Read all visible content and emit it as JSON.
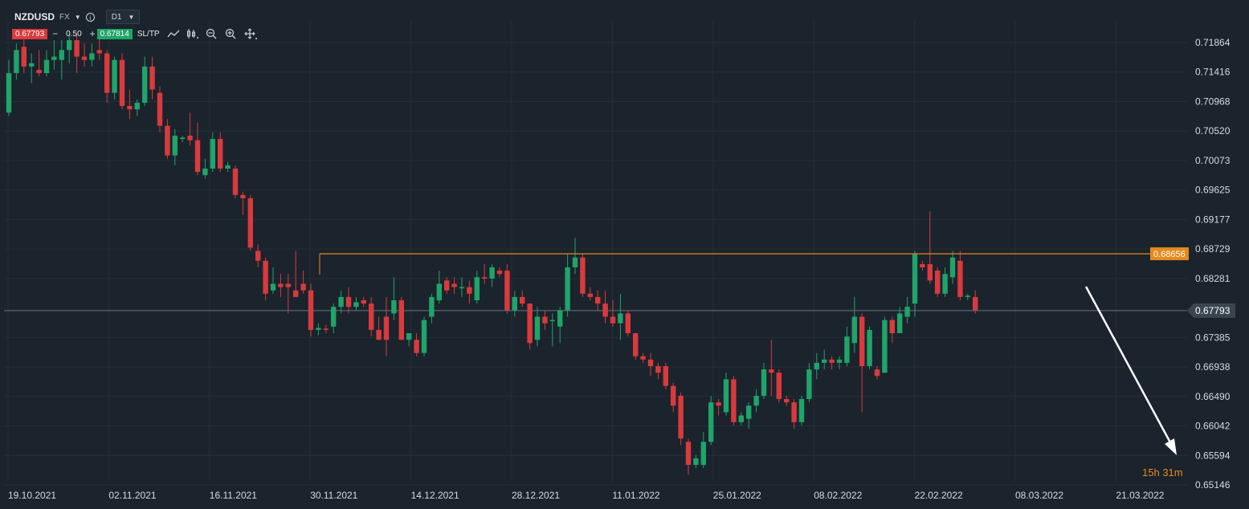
{
  "header": {
    "symbol": "NZDUSD",
    "market": "FX",
    "timeframe": "D1",
    "bid": "0.67793",
    "ask": "0.67814",
    "lot": "0.50",
    "sltp_label": "SL/TP",
    "minus": "−",
    "plus": "+"
  },
  "countdown": {
    "hours": "15",
    "h_unit": "h",
    "minutes": "31",
    "m_unit": "m"
  },
  "colors": {
    "background": "#1b232c",
    "bull": "#1fa46a",
    "bear": "#d93a3e",
    "resistance": "#e58a1f",
    "price_line": "#6b7681",
    "grid": "#252f39",
    "arrow": "#ffffff"
  },
  "chart_data": {
    "type": "candlestick",
    "y_ticks": [
      "0.71864",
      "0.71416",
      "0.70968",
      "0.70520",
      "0.70073",
      "0.69625",
      "0.69177",
      "0.68729",
      "0.68281",
      "0.67385",
      "0.66938",
      "0.66490",
      "0.66042",
      "0.65594",
      "0.65146"
    ],
    "ylim": [
      0.651,
      0.721
    ],
    "x_ticks": [
      "19.10.2021",
      "02.11.2021",
      "16.11.2021",
      "30.11.2021",
      "14.12.2021",
      "28.12.2021",
      "11.01.2022",
      "25.01.2022",
      "08.02.2022",
      "22.02.2022",
      "08.03.2022",
      "21.03.2022"
    ],
    "current_price": "0.67793",
    "resistance_level": "0.68656",
    "candles": [
      {
        "o": 0.708,
        "h": 0.716,
        "l": 0.7075,
        "c": 0.714
      },
      {
        "o": 0.714,
        "h": 0.7185,
        "l": 0.713,
        "c": 0.7175
      },
      {
        "o": 0.718,
        "h": 0.72,
        "l": 0.714,
        "c": 0.715
      },
      {
        "o": 0.715,
        "h": 0.717,
        "l": 0.7125,
        "c": 0.7155
      },
      {
        "o": 0.7145,
        "h": 0.7175,
        "l": 0.7135,
        "c": 0.714
      },
      {
        "o": 0.714,
        "h": 0.7175,
        "l": 0.7135,
        "c": 0.716
      },
      {
        "o": 0.716,
        "h": 0.719,
        "l": 0.7145,
        "c": 0.7165
      },
      {
        "o": 0.716,
        "h": 0.719,
        "l": 0.713,
        "c": 0.7175
      },
      {
        "o": 0.7175,
        "h": 0.72,
        "l": 0.7155,
        "c": 0.719
      },
      {
        "o": 0.719,
        "h": 0.72,
        "l": 0.714,
        "c": 0.7165
      },
      {
        "o": 0.7165,
        "h": 0.7185,
        "l": 0.715,
        "c": 0.716
      },
      {
        "o": 0.716,
        "h": 0.7185,
        "l": 0.715,
        "c": 0.717
      },
      {
        "o": 0.7175,
        "h": 0.7195,
        "l": 0.716,
        "c": 0.717
      },
      {
        "o": 0.717,
        "h": 0.7175,
        "l": 0.7095,
        "c": 0.711
      },
      {
        "o": 0.711,
        "h": 0.7165,
        "l": 0.71,
        "c": 0.716
      },
      {
        "o": 0.716,
        "h": 0.717,
        "l": 0.7085,
        "c": 0.709
      },
      {
        "o": 0.709,
        "h": 0.7115,
        "l": 0.707,
        "c": 0.7085
      },
      {
        "o": 0.7085,
        "h": 0.71,
        "l": 0.7075,
        "c": 0.7095
      },
      {
        "o": 0.7095,
        "h": 0.7165,
        "l": 0.709,
        "c": 0.715
      },
      {
        "o": 0.715,
        "h": 0.7165,
        "l": 0.71,
        "c": 0.7115
      },
      {
        "o": 0.711,
        "h": 0.712,
        "l": 0.705,
        "c": 0.706
      },
      {
        "o": 0.706,
        "h": 0.707,
        "l": 0.701,
        "c": 0.7015
      },
      {
        "o": 0.7015,
        "h": 0.7055,
        "l": 0.7,
        "c": 0.7045
      },
      {
        "o": 0.704,
        "h": 0.7045,
        "l": 0.7035,
        "c": 0.7042
      },
      {
        "o": 0.7045,
        "h": 0.708,
        "l": 0.703,
        "c": 0.7038
      },
      {
        "o": 0.7038,
        "h": 0.7065,
        "l": 0.6985,
        "c": 0.699
      },
      {
        "o": 0.6985,
        "h": 0.701,
        "l": 0.698,
        "c": 0.6995
      },
      {
        "o": 0.6995,
        "h": 0.705,
        "l": 0.699,
        "c": 0.704
      },
      {
        "o": 0.704,
        "h": 0.705,
        "l": 0.699,
        "c": 0.6995
      },
      {
        "o": 0.6995,
        "h": 0.7005,
        "l": 0.699,
        "c": 0.7
      },
      {
        "o": 0.6995,
        "h": 0.7,
        "l": 0.695,
        "c": 0.6955
      },
      {
        "o": 0.6955,
        "h": 0.696,
        "l": 0.6925,
        "c": 0.695
      },
      {
        "o": 0.695,
        "h": 0.6955,
        "l": 0.687,
        "c": 0.6875
      },
      {
        "o": 0.687,
        "h": 0.688,
        "l": 0.6845,
        "c": 0.6855
      },
      {
        "o": 0.6855,
        "h": 0.686,
        "l": 0.6795,
        "c": 0.6805
      },
      {
        "o": 0.681,
        "h": 0.6845,
        "l": 0.6805,
        "c": 0.682
      },
      {
        "o": 0.682,
        "h": 0.6835,
        "l": 0.68,
        "c": 0.6815
      },
      {
        "o": 0.682,
        "h": 0.6835,
        "l": 0.6775,
        "c": 0.6815
      },
      {
        "o": 0.681,
        "h": 0.687,
        "l": 0.68,
        "c": 0.68
      },
      {
        "o": 0.682,
        "h": 0.684,
        "l": 0.6805,
        "c": 0.681
      },
      {
        "o": 0.681,
        "h": 0.682,
        "l": 0.674,
        "c": 0.675
      },
      {
        "o": 0.675,
        "h": 0.676,
        "l": 0.6742,
        "c": 0.6753
      },
      {
        "o": 0.6752,
        "h": 0.6758,
        "l": 0.6745,
        "c": 0.675
      },
      {
        "o": 0.6755,
        "h": 0.679,
        "l": 0.6745,
        "c": 0.6785
      },
      {
        "o": 0.6785,
        "h": 0.681,
        "l": 0.6775,
        "c": 0.68
      },
      {
        "o": 0.68,
        "h": 0.6815,
        "l": 0.6775,
        "c": 0.6785
      },
      {
        "o": 0.6785,
        "h": 0.68,
        "l": 0.678,
        "c": 0.6792
      },
      {
        "o": 0.6795,
        "h": 0.68,
        "l": 0.6785,
        "c": 0.679
      },
      {
        "o": 0.679,
        "h": 0.68,
        "l": 0.674,
        "c": 0.675
      },
      {
        "o": 0.675,
        "h": 0.677,
        "l": 0.6735,
        "c": 0.6735
      },
      {
        "o": 0.677,
        "h": 0.68,
        "l": 0.671,
        "c": 0.6735
      },
      {
        "o": 0.6775,
        "h": 0.683,
        "l": 0.6765,
        "c": 0.6795
      },
      {
        "o": 0.6795,
        "h": 0.68,
        "l": 0.6735,
        "c": 0.6735
      },
      {
        "o": 0.6735,
        "h": 0.6745,
        "l": 0.6725,
        "c": 0.6745
      },
      {
        "o": 0.6735,
        "h": 0.6745,
        "l": 0.671,
        "c": 0.6715
      },
      {
        "o": 0.6715,
        "h": 0.677,
        "l": 0.671,
        "c": 0.6765
      },
      {
        "o": 0.677,
        "h": 0.6805,
        "l": 0.676,
        "c": 0.68
      },
      {
        "o": 0.6795,
        "h": 0.684,
        "l": 0.679,
        "c": 0.682
      },
      {
        "o": 0.6825,
        "h": 0.683,
        "l": 0.6805,
        "c": 0.681
      },
      {
        "o": 0.682,
        "h": 0.683,
        "l": 0.6805,
        "c": 0.6815
      },
      {
        "o": 0.6815,
        "h": 0.683,
        "l": 0.68,
        "c": 0.6815
      },
      {
        "o": 0.6815,
        "h": 0.6825,
        "l": 0.679,
        "c": 0.6805
      },
      {
        "o": 0.6795,
        "h": 0.684,
        "l": 0.679,
        "c": 0.683
      },
      {
        "o": 0.683,
        "h": 0.685,
        "l": 0.682,
        "c": 0.6828
      },
      {
        "o": 0.6828,
        "h": 0.685,
        "l": 0.6815,
        "c": 0.6845
      },
      {
        "o": 0.684,
        "h": 0.6845,
        "l": 0.683,
        "c": 0.6835
      },
      {
        "o": 0.684,
        "h": 0.685,
        "l": 0.6775,
        "c": 0.678
      },
      {
        "o": 0.678,
        "h": 0.681,
        "l": 0.677,
        "c": 0.68
      },
      {
        "o": 0.68,
        "h": 0.681,
        "l": 0.6785,
        "c": 0.679
      },
      {
        "o": 0.679,
        "h": 0.679,
        "l": 0.672,
        "c": 0.673
      },
      {
        "o": 0.6735,
        "h": 0.6785,
        "l": 0.6725,
        "c": 0.677
      },
      {
        "o": 0.677,
        "h": 0.678,
        "l": 0.675,
        "c": 0.676
      },
      {
        "o": 0.6765,
        "h": 0.6775,
        "l": 0.6725,
        "c": 0.6765
      },
      {
        "o": 0.6755,
        "h": 0.6785,
        "l": 0.673,
        "c": 0.678
      },
      {
        "o": 0.678,
        "h": 0.6865,
        "l": 0.677,
        "c": 0.6845
      },
      {
        "o": 0.6845,
        "h": 0.689,
        "l": 0.6835,
        "c": 0.686
      },
      {
        "o": 0.686,
        "h": 0.6865,
        "l": 0.68,
        "c": 0.6805
      },
      {
        "o": 0.6805,
        "h": 0.6815,
        "l": 0.6795,
        "c": 0.68
      },
      {
        "o": 0.68,
        "h": 0.681,
        "l": 0.678,
        "c": 0.679
      },
      {
        "o": 0.679,
        "h": 0.681,
        "l": 0.676,
        "c": 0.677
      },
      {
        "o": 0.677,
        "h": 0.6795,
        "l": 0.6755,
        "c": 0.676
      },
      {
        "o": 0.676,
        "h": 0.6805,
        "l": 0.6735,
        "c": 0.6775
      },
      {
        "o": 0.6775,
        "h": 0.678,
        "l": 0.674,
        "c": 0.6745
      },
      {
        "o": 0.6745,
        "h": 0.6745,
        "l": 0.6705,
        "c": 0.671
      },
      {
        "o": 0.671,
        "h": 0.6715,
        "l": 0.67,
        "c": 0.6705
      },
      {
        "o": 0.6705,
        "h": 0.6715,
        "l": 0.668,
        "c": 0.6695
      },
      {
        "o": 0.6695,
        "h": 0.67,
        "l": 0.6675,
        "c": 0.6685
      },
      {
        "o": 0.6695,
        "h": 0.67,
        "l": 0.666,
        "c": 0.6665
      },
      {
        "o": 0.6665,
        "h": 0.667,
        "l": 0.6625,
        "c": 0.6635
      },
      {
        "o": 0.665,
        "h": 0.6655,
        "l": 0.6575,
        "c": 0.6585
      },
      {
        "o": 0.658,
        "h": 0.6585,
        "l": 0.653,
        "c": 0.6545
      },
      {
        "o": 0.6545,
        "h": 0.656,
        "l": 0.654,
        "c": 0.6555
      },
      {
        "o": 0.6545,
        "h": 0.6595,
        "l": 0.654,
        "c": 0.658
      },
      {
        "o": 0.658,
        "h": 0.665,
        "l": 0.6575,
        "c": 0.664
      },
      {
        "o": 0.664,
        "h": 0.6645,
        "l": 0.662,
        "c": 0.6635
      },
      {
        "o": 0.6625,
        "h": 0.6685,
        "l": 0.662,
        "c": 0.6675
      },
      {
        "o": 0.6675,
        "h": 0.668,
        "l": 0.6605,
        "c": 0.661
      },
      {
        "o": 0.661,
        "h": 0.6625,
        "l": 0.6605,
        "c": 0.662
      },
      {
        "o": 0.6615,
        "h": 0.664,
        "l": 0.66,
        "c": 0.6635
      },
      {
        "o": 0.6635,
        "h": 0.666,
        "l": 0.6625,
        "c": 0.665
      },
      {
        "o": 0.665,
        "h": 0.67,
        "l": 0.6645,
        "c": 0.669
      },
      {
        "o": 0.669,
        "h": 0.6735,
        "l": 0.665,
        "c": 0.6685
      },
      {
        "o": 0.6685,
        "h": 0.669,
        "l": 0.664,
        "c": 0.6645
      },
      {
        "o": 0.6645,
        "h": 0.665,
        "l": 0.6635,
        "c": 0.664
      },
      {
        "o": 0.664,
        "h": 0.6645,
        "l": 0.66,
        "c": 0.661
      },
      {
        "o": 0.661,
        "h": 0.665,
        "l": 0.6605,
        "c": 0.6645
      },
      {
        "o": 0.6645,
        "h": 0.67,
        "l": 0.664,
        "c": 0.669
      },
      {
        "o": 0.669,
        "h": 0.6715,
        "l": 0.6675,
        "c": 0.67
      },
      {
        "o": 0.67,
        "h": 0.672,
        "l": 0.669,
        "c": 0.6705
      },
      {
        "o": 0.6705,
        "h": 0.671,
        "l": 0.669,
        "c": 0.67
      },
      {
        "o": 0.67,
        "h": 0.671,
        "l": 0.669,
        "c": 0.6705
      },
      {
        "o": 0.67,
        "h": 0.6755,
        "l": 0.6695,
        "c": 0.674
      },
      {
        "o": 0.673,
        "h": 0.68,
        "l": 0.6715,
        "c": 0.677
      },
      {
        "o": 0.677,
        "h": 0.6775,
        "l": 0.6625,
        "c": 0.6695
      },
      {
        "o": 0.6695,
        "h": 0.6755,
        "l": 0.669,
        "c": 0.675
      },
      {
        "o": 0.669,
        "h": 0.6695,
        "l": 0.6675,
        "c": 0.668
      },
      {
        "o": 0.6685,
        "h": 0.677,
        "l": 0.6685,
        "c": 0.6765
      },
      {
        "o": 0.6765,
        "h": 0.677,
        "l": 0.673,
        "c": 0.6745
      },
      {
        "o": 0.6745,
        "h": 0.6785,
        "l": 0.6745,
        "c": 0.6775
      },
      {
        "o": 0.677,
        "h": 0.68,
        "l": 0.676,
        "c": 0.6785
      },
      {
        "o": 0.679,
        "h": 0.687,
        "l": 0.677,
        "c": 0.6865
      },
      {
        "o": 0.685,
        "h": 0.6855,
        "l": 0.684,
        "c": 0.6845
      },
      {
        "o": 0.685,
        "h": 0.693,
        "l": 0.682,
        "c": 0.6825
      },
      {
        "o": 0.684,
        "h": 0.6845,
        "l": 0.68,
        "c": 0.6805
      },
      {
        "o": 0.6805,
        "h": 0.6845,
        "l": 0.68,
        "c": 0.6835
      },
      {
        "o": 0.683,
        "h": 0.687,
        "l": 0.682,
        "c": 0.686
      },
      {
        "o": 0.6855,
        "h": 0.687,
        "l": 0.6795,
        "c": 0.68
      },
      {
        "o": 0.68,
        "h": 0.6805,
        "l": 0.6795,
        "c": 0.6802
      },
      {
        "o": 0.68,
        "h": 0.681,
        "l": 0.6775,
        "c": 0.678
      }
    ]
  }
}
